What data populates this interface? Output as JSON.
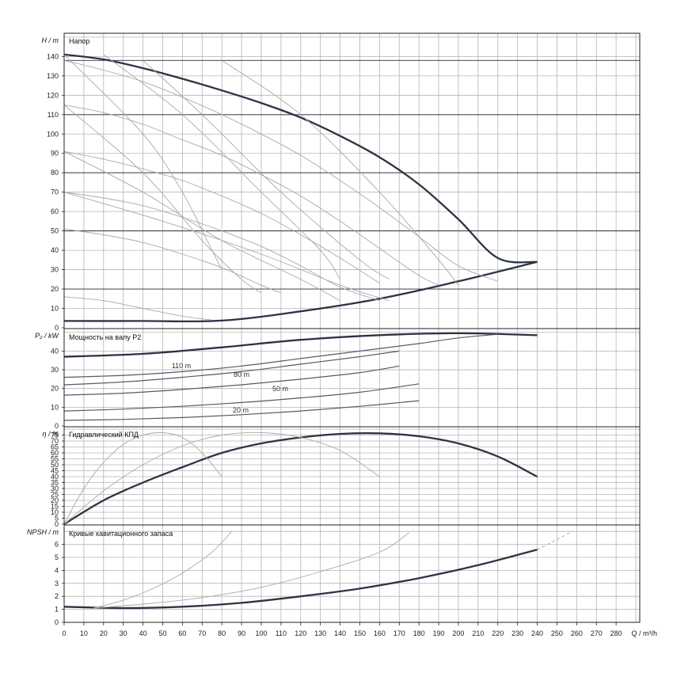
{
  "x_axis": {
    "label": "Q / m³/h",
    "ticks": [
      "0",
      "10",
      "20",
      "30",
      "40",
      "50",
      "60",
      "70",
      "80",
      "90",
      "100",
      "110",
      "120",
      "130",
      "140",
      "150",
      "160",
      "170",
      "180",
      "190",
      "200",
      "210",
      "220",
      "230",
      "240",
      "250",
      "260",
      "270",
      "280"
    ],
    "range": [
      0,
      292
    ]
  },
  "panels": [
    {
      "id": "head",
      "title": "Напор",
      "ylabel": "H / m",
      "ylim": [
        0,
        152
      ],
      "yticks": [
        "0",
        "10",
        "20",
        "30",
        "40",
        "50",
        "60",
        "70",
        "80",
        "90",
        "100",
        "110",
        "120",
        "130",
        "140"
      ]
    },
    {
      "id": "power",
      "title": "Мощность на валу P2",
      "ylabel": "P₂ / kW",
      "ylim": [
        0,
        52
      ],
      "yticks": [
        "0",
        "10",
        "20",
        "30",
        "40"
      ]
    },
    {
      "id": "eff",
      "title": "Гидравлический КПД",
      "ylabel": "η / %",
      "ylim": [
        0,
        82
      ],
      "yticks": [
        "0",
        "5",
        "10",
        "15",
        "20",
        "25",
        "30",
        "35",
        "40",
        "45",
        "50",
        "55",
        "60",
        "65",
        "70",
        "75"
      ]
    },
    {
      "id": "npsh",
      "title": "Кривые кавитационного запаса",
      "ylabel": "NPSH / m",
      "ylim": [
        0,
        7.5
      ],
      "yticks": [
        "0",
        "1",
        "2",
        "3",
        "4",
        "5",
        "6"
      ]
    }
  ],
  "chart_data": [
    {
      "panel": "head",
      "type": "line",
      "title": "Напор",
      "ylabel": "H / m",
      "ylim": [
        0,
        152
      ],
      "reference_levels": [
        138,
        110,
        80,
        50,
        20
      ],
      "series": [
        {
          "name": "",
          "emphasis": "max",
          "x": [
            0,
            20,
            40,
            60,
            80,
            100,
            120,
            140,
            160,
            180,
            200,
            220,
            240
          ],
          "y": [
            141,
            138.5,
            134,
            128.5,
            122.5,
            116,
            108.5,
            99,
            88,
            74,
            56,
            36,
            34
          ]
        },
        {
          "name": "",
          "emphasis": "min",
          "x": [
            0,
            40,
            80,
            120,
            160,
            200,
            240
          ],
          "y": [
            3.5,
            3.5,
            3.7,
            8.5,
            15,
            24,
            34
          ]
        },
        {
          "name": "",
          "x": [
            0,
            20,
            40,
            60,
            80,
            100,
            120,
            140,
            160,
            180,
            200,
            220
          ],
          "y": [
            138,
            133,
            127,
            119,
            110,
            100,
            89,
            76,
            62,
            47,
            32,
            24
          ]
        },
        {
          "name": "",
          "x": [
            0,
            20,
            40,
            60,
            80,
            100,
            120,
            140,
            160,
            180,
            190
          ],
          "y": [
            115,
            111,
            105,
            97,
            89,
            79,
            68,
            55,
            41,
            27,
            22
          ]
        },
        {
          "name": "",
          "x": [
            0,
            20,
            40,
            60,
            80,
            100,
            120,
            140,
            160
          ],
          "y": [
            91,
            87,
            82,
            76,
            68,
            59,
            48,
            36,
            23
          ]
        },
        {
          "name": "",
          "x": [
            0,
            20,
            40,
            60,
            80,
            100,
            120,
            140,
            160
          ],
          "y": [
            70,
            67,
            63,
            57,
            50,
            42,
            32,
            21,
            14
          ]
        },
        {
          "name": "",
          "x": [
            0,
            20,
            40,
            60,
            80,
            100,
            110
          ],
          "y": [
            51,
            48,
            44,
            38,
            31,
            22,
            18
          ]
        },
        {
          "name": "",
          "x": [
            0,
            20,
            40,
            60,
            75
          ],
          "y": [
            16,
            14,
            10,
            6,
            4
          ]
        }
      ]
    },
    {
      "panel": "power",
      "type": "line",
      "title": "Мощность на валу P2",
      "ylabel": "P₂ / kW",
      "ylim": [
        0,
        52
      ],
      "annotations": [
        "110 m",
        "80 m",
        "50 m",
        "20 m"
      ],
      "series": [
        {
          "name": "",
          "emphasis": "max",
          "x": [
            0,
            40,
            80,
            120,
            160,
            200,
            240
          ],
          "y": [
            37,
            38.5,
            42,
            46,
            48.5,
            49.5,
            48.5
          ]
        },
        {
          "name": "",
          "x": [
            0,
            30,
            60,
            90,
            120,
            150,
            180,
            200,
            220
          ],
          "y": [
            26,
            27,
            29,
            32,
            36,
            40,
            44,
            47,
            49
          ]
        },
        {
          "name": "",
          "x": [
            0,
            30,
            60,
            90,
            120,
            150,
            170
          ],
          "y": [
            22,
            23.5,
            26,
            29,
            33,
            37,
            40
          ]
        },
        {
          "name": "",
          "x": [
            0,
            30,
            60,
            90,
            120,
            150,
            170
          ],
          "y": [
            16.5,
            17.5,
            19.5,
            22,
            25,
            28.5,
            32
          ]
        },
        {
          "name": "",
          "x": [
            0,
            30,
            60,
            90,
            120,
            150,
            180
          ],
          "y": [
            8,
            9,
            10.5,
            12.5,
            15,
            18,
            22.5
          ]
        },
        {
          "name": "",
          "x": [
            0,
            30,
            60,
            90,
            120,
            150,
            180
          ],
          "y": [
            3,
            3.5,
            4.5,
            6,
            8,
            10.5,
            13.5
          ]
        }
      ]
    },
    {
      "panel": "eff",
      "type": "line",
      "title": "Гидравлический КПД",
      "ylabel": "η / %",
      "ylim": [
        0,
        82
      ],
      "series": [
        {
          "name": "",
          "emphasis": "max",
          "x": [
            0,
            20,
            40,
            60,
            80,
            100,
            120,
            140,
            160,
            180,
            200,
            220,
            240
          ],
          "y": [
            0,
            20,
            35,
            48,
            60,
            68,
            73,
            76,
            76.5,
            74,
            68,
            57,
            40
          ]
        },
        {
          "name": "",
          "x": [
            0,
            10,
            20,
            30,
            40,
            50,
            60,
            70,
            80
          ],
          "y": [
            0,
            30,
            52,
            67,
            75,
            77,
            73,
            60,
            40
          ]
        },
        {
          "name": "",
          "x": [
            0,
            20,
            40,
            60,
            80,
            100,
            120,
            140,
            160
          ],
          "y": [
            0,
            28,
            50,
            66,
            75,
            77,
            73,
            62,
            40
          ]
        }
      ]
    },
    {
      "panel": "npsh",
      "type": "line",
      "title": "Кривые кавитационного запаса",
      "ylabel": "NPSH / m",
      "ylim": [
        0,
        7.5
      ],
      "series": [
        {
          "name": "",
          "emphasis": "max",
          "x": [
            0,
            30,
            60,
            90,
            120,
            150,
            180,
            210,
            240
          ],
          "y": [
            1.2,
            1.1,
            1.2,
            1.5,
            2,
            2.6,
            3.4,
            4.4,
            5.6
          ]
        },
        {
          "name": "",
          "x": [
            15,
            30,
            45,
            60,
            75,
            85
          ],
          "y": [
            1.1,
            1.7,
            2.6,
            3.8,
            5.4,
            7
          ]
        },
        {
          "name": "",
          "x": [
            15,
            40,
            70,
            100,
            130,
            160,
            175
          ],
          "y": [
            1.1,
            1.4,
            1.9,
            2.7,
            3.9,
            5.4,
            6.9
          ]
        },
        {
          "name": "",
          "x": [
            240,
            258
          ],
          "y": [
            5.6,
            7
          ]
        }
      ]
    }
  ]
}
